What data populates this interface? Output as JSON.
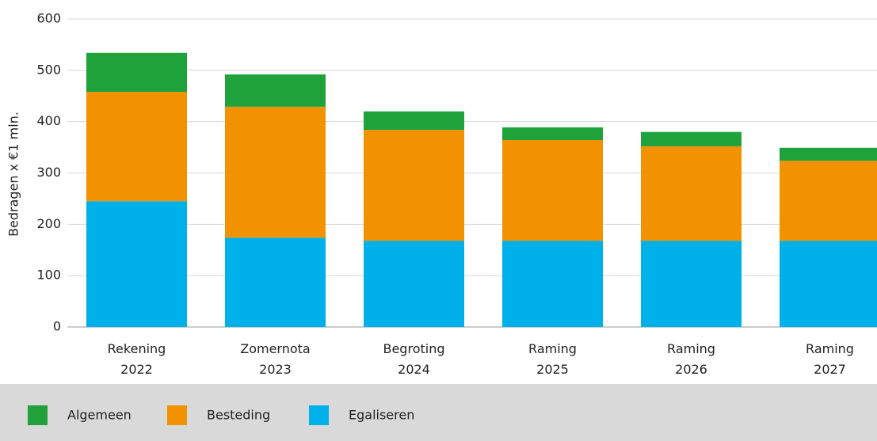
{
  "chart_data": {
    "type": "stacked_bar",
    "y_label": "Bedragen x €1 mln.",
    "categories": [
      "Rekening\n2022",
      "Zomernota\n2023",
      "Begroting\n2024",
      "Raming\n2025",
      "Raming\n2026",
      "Raming\n2027"
    ],
    "series": [
      {
        "name": "Algemeen",
        "color": "#1fa23a",
        "values": [
          76,
          63,
          36,
          25,
          28,
          25
        ]
      },
      {
        "name": "Besteding",
        "color": "#f29200",
        "values": [
          213,
          255,
          216,
          196,
          184,
          156
        ]
      },
      {
        "name": "Egaliseren",
        "color": "#00b0e8",
        "values": [
          245,
          174,
          168,
          168,
          168,
          168
        ]
      }
    ],
    "ylim": [
      0,
      600
    ],
    "yticks": [
      0,
      100,
      200,
      300,
      400,
      500,
      600
    ],
    "grid": true
  }
}
